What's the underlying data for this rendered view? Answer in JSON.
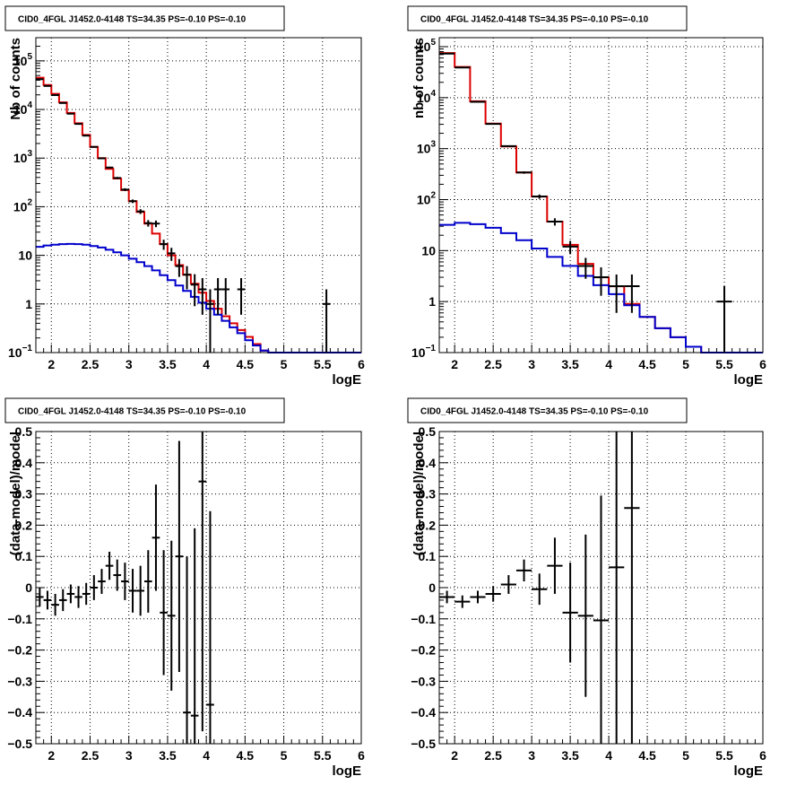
{
  "colors": {
    "data": "#000000",
    "model_total": "#dd0000",
    "model_source": "#0000cc"
  },
  "chart_data": [
    {
      "type": "histogram",
      "title": "CID0_4FGL J1452.0-4148 TS=34.35 PS=-0.10 PS=-0.10",
      "xlabel": "logE",
      "ylabel": "Nb of counts",
      "xlim": [
        1.8,
        6
      ],
      "ylim": [
        0.1,
        300000
      ],
      "log_y": true,
      "grid": true,
      "x_ticks": [
        "2",
        "2.5",
        "3",
        "3.5",
        "4",
        "4.5",
        "5",
        "5.5",
        "6"
      ],
      "y_ticks": [
        {
          "value": 0.1,
          "base": "10",
          "exp": "−1"
        },
        {
          "value": 1,
          "text": "1"
        },
        {
          "value": 10,
          "text": "10"
        },
        {
          "value": 100,
          "base": "10",
          "exp": "2"
        },
        {
          "value": 1000,
          "base": "10",
          "exp": "3"
        },
        {
          "value": 10000,
          "base": "10",
          "exp": "4"
        },
        {
          "value": 100000,
          "base": "10",
          "exp": "5"
        }
      ],
      "bin_edges": [
        1.8,
        1.9,
        2.0,
        2.1,
        2.2,
        2.3,
        2.4,
        2.5,
        2.6,
        2.7,
        2.8,
        2.9,
        3.0,
        3.1,
        3.2,
        3.3,
        3.4,
        3.5,
        3.6,
        3.7,
        3.8,
        3.9,
        4.0,
        4.1,
        4.2,
        4.3,
        4.4,
        4.5,
        4.6,
        4.7,
        4.8,
        4.9,
        5.0,
        5.1,
        5.2,
        5.3,
        5.4,
        5.5,
        5.6,
        5.7,
        5.8,
        5.9,
        6.0
      ],
      "series": [
        {
          "name": "model_total",
          "color": "#dd0000",
          "values": [
            45000,
            32000,
            21000,
            14000,
            8500,
            5200,
            3000,
            1700,
            1000,
            600,
            380,
            220,
            130,
            78,
            45,
            28,
            17,
            10,
            6.3,
            4.0,
            2.6,
            1.7,
            1.15,
            0.8,
            0.56,
            0.4,
            0.29,
            0.21,
            0.15,
            0.11,
            0.1,
            0.1,
            0.1,
            0.1,
            0.1,
            0.1,
            0.1,
            0.1,
            0.1,
            0.1,
            0.1,
            0.1
          ]
        },
        {
          "name": "model_source",
          "color": "#0000cc",
          "values": [
            15,
            16,
            16.5,
            17,
            17.2,
            17,
            16.5,
            15.5,
            14.5,
            13,
            11.5,
            10,
            8.5,
            7.2,
            6.0,
            4.9,
            3.9,
            3.1,
            2.4,
            1.85,
            1.4,
            1.06,
            0.8,
            0.6,
            0.45,
            0.33,
            0.25,
            0.18,
            0.14,
            0.11,
            0.1,
            0.1,
            0.1,
            0.1,
            0.1,
            0.1,
            0.1,
            0.1,
            0.1,
            0.1,
            0.1,
            0.1
          ]
        }
      ],
      "data_points": [
        {
          "x": 1.85,
          "y": 42000,
          "err": 205
        },
        {
          "x": 1.95,
          "y": 30500,
          "err": 175
        },
        {
          "x": 2.05,
          "y": 19800,
          "err": 140
        },
        {
          "x": 2.15,
          "y": 13600,
          "err": 117
        },
        {
          "x": 2.25,
          "y": 8200,
          "err": 91
        },
        {
          "x": 2.35,
          "y": 5050,
          "err": 71
        },
        {
          "x": 2.45,
          "y": 2900,
          "err": 54
        },
        {
          "x": 2.55,
          "y": 1700,
          "err": 41
        },
        {
          "x": 2.65,
          "y": 990,
          "err": 31
        },
        {
          "x": 2.75,
          "y": 640,
          "err": 25
        },
        {
          "x": 2.85,
          "y": 390,
          "err": 20
        },
        {
          "x": 2.95,
          "y": 225,
          "err": 15
        },
        {
          "x": 3.05,
          "y": 130,
          "err": 11
        },
        {
          "x": 3.15,
          "y": 80,
          "err": 9
        },
        {
          "x": 3.25,
          "y": 46,
          "err": 7
        },
        {
          "x": 3.35,
          "y": 45,
          "err": 7
        },
        {
          "x": 3.45,
          "y": 17,
          "err": 4
        },
        {
          "x": 3.55,
          "y": 11,
          "err": 3.3
        },
        {
          "x": 3.65,
          "y": 6,
          "err": 2.4
        },
        {
          "x": 3.75,
          "y": 4,
          "err": 2
        },
        {
          "x": 3.85,
          "y": 2.5,
          "err": 1.6
        },
        {
          "x": 3.95,
          "y": 2,
          "err": 1.4
        },
        {
          "x": 4.05,
          "y": 1,
          "err": 1
        },
        {
          "x": 4.15,
          "y": 2,
          "err": 1.4
        },
        {
          "x": 4.25,
          "y": 2,
          "err": 1.4
        },
        {
          "x": 4.45,
          "y": 2,
          "err": 1.4
        },
        {
          "x": 5.55,
          "y": 1,
          "err": 1
        }
      ]
    },
    {
      "type": "histogram",
      "title": "CID0_4FGL J1452.0-4148 TS=34.35 PS=-0.10 PS=-0.10",
      "xlabel": "logE",
      "ylabel": "nb of counts",
      "xlim": [
        1.8,
        6
      ],
      "ylim": [
        0.1,
        150000
      ],
      "log_y": true,
      "grid": true,
      "x_ticks": [
        "2",
        "2.5",
        "3",
        "3.5",
        "4",
        "4.5",
        "5",
        "5.5",
        "6"
      ],
      "y_ticks": [
        {
          "value": 0.1,
          "base": "10",
          "exp": "−1"
        },
        {
          "value": 1,
          "text": "1"
        },
        {
          "value": 10,
          "text": "10"
        },
        {
          "value": 100,
          "base": "10",
          "exp": "2"
        },
        {
          "value": 1000,
          "base": "10",
          "exp": "3"
        },
        {
          "value": 10000,
          "base": "10",
          "exp": "4"
        },
        {
          "value": 100000,
          "base": "10",
          "exp": "5"
        }
      ],
      "bin_edges": [
        1.8,
        2.0,
        2.2,
        2.4,
        2.6,
        2.8,
        3.0,
        3.2,
        3.4,
        3.6,
        3.8,
        4.0,
        4.2,
        4.4,
        4.6,
        4.8,
        5.0,
        5.2,
        5.4,
        5.6,
        5.8,
        6.0
      ],
      "series": [
        {
          "name": "model_total",
          "color": "#dd0000",
          "values": [
            75000,
            40000,
            8500,
            3100,
            1100,
            340,
            115,
            37,
            13,
            5.5,
            3,
            2,
            0.9,
            0.5,
            0.3,
            0.2,
            0.13,
            0.1,
            0.1,
            0.1,
            0.1
          ]
        },
        {
          "name": "model_source",
          "color": "#0000cc",
          "values": [
            32,
            35,
            33,
            28,
            22,
            16,
            11,
            7.5,
            5,
            3.2,
            2.1,
            1.4,
            0.85,
            0.5,
            0.3,
            0.2,
            0.13,
            0.1,
            0.1,
            0.1,
            0.1
          ]
        }
      ],
      "data_points": [
        {
          "x": 1.9,
          "y": 73000,
          "err": 270
        },
        {
          "x": 2.1,
          "y": 39000,
          "err": 197
        },
        {
          "x": 2.3,
          "y": 8300,
          "err": 91
        },
        {
          "x": 2.5,
          "y": 3050,
          "err": 55
        },
        {
          "x": 2.7,
          "y": 1120,
          "err": 33
        },
        {
          "x": 2.9,
          "y": 340,
          "err": 18
        },
        {
          "x": 3.1,
          "y": 115,
          "err": 11
        },
        {
          "x": 3.3,
          "y": 37,
          "err": 6
        },
        {
          "x": 3.5,
          "y": 12,
          "err": 3.5
        },
        {
          "x": 3.7,
          "y": 5,
          "err": 2.2
        },
        {
          "x": 3.9,
          "y": 3,
          "err": 1.7
        },
        {
          "x": 4.1,
          "y": 2,
          "err": 1.4
        },
        {
          "x": 4.3,
          "y": 2,
          "err": 1.4
        },
        {
          "x": 5.5,
          "y": 1,
          "err": 1
        }
      ]
    },
    {
      "type": "scatter",
      "title": "CID0_4FGL J1452.0-4148 TS=34.35 PS=-0.10 PS=-0.10",
      "xlabel": "logE",
      "ylabel": "(data-model)/model",
      "xlim": [
        1.8,
        6
      ],
      "ylim": [
        -0.5,
        0.5
      ],
      "grid": true,
      "x_ticks": [
        "2",
        "2.5",
        "3",
        "3.5",
        "4",
        "4.5",
        "5",
        "5.5",
        "6"
      ],
      "y_ticks": [
        "−0.5",
        "−0.4",
        "−0.3",
        "−0.2",
        "−0.1",
        "0",
        "0.1",
        "0.2",
        "0.3",
        "0.4",
        "0.5"
      ],
      "bin_half_width": 0.05,
      "data_points": [
        {
          "x": 1.85,
          "y": -0.03,
          "err": 0.03
        },
        {
          "x": 1.95,
          "y": -0.04,
          "err": 0.03
        },
        {
          "x": 2.05,
          "y": -0.055,
          "err": 0.035
        },
        {
          "x": 2.15,
          "y": -0.04,
          "err": 0.035
        },
        {
          "x": 2.25,
          "y": -0.02,
          "err": 0.03
        },
        {
          "x": 2.35,
          "y": -0.03,
          "err": 0.035
        },
        {
          "x": 2.45,
          "y": -0.02,
          "err": 0.035
        },
        {
          "x": 2.55,
          "y": 0.0,
          "err": 0.04
        },
        {
          "x": 2.65,
          "y": 0.02,
          "err": 0.04
        },
        {
          "x": 2.75,
          "y": 0.07,
          "err": 0.045
        },
        {
          "x": 2.85,
          "y": 0.04,
          "err": 0.05
        },
        {
          "x": 2.95,
          "y": 0.02,
          "err": 0.06
        },
        {
          "x": 3.05,
          "y": -0.01,
          "err": 0.07
        },
        {
          "x": 3.15,
          "y": -0.01,
          "err": 0.08
        },
        {
          "x": 3.25,
          "y": 0.02,
          "err": 0.1
        },
        {
          "x": 3.35,
          "y": 0.16,
          "err": 0.17
        },
        {
          "x": 3.45,
          "y": -0.08,
          "err": 0.2
        },
        {
          "x": 3.55,
          "y": -0.09,
          "err": 0.24
        },
        {
          "x": 3.65,
          "y": 0.1,
          "err": 0.37
        },
        {
          "x": 3.75,
          "y": -0.4,
          "err": 0.5
        },
        {
          "x": 3.85,
          "y": -0.41,
          "err": 0.6
        },
        {
          "x": 3.95,
          "y": 0.34,
          "err": 0.8
        },
        {
          "x": 4.05,
          "y": -0.375,
          "err": 0.62
        }
      ]
    },
    {
      "type": "scatter",
      "title": "CID0_4FGL J1452.0-4148 TS=34.35 PS=-0.10 PS=-0.10",
      "xlabel": "logE",
      "ylabel": "(data-model)/model",
      "xlim": [
        1.8,
        6
      ],
      "ylim": [
        -0.5,
        0.5
      ],
      "grid": true,
      "x_ticks": [
        "2",
        "2.5",
        "3",
        "3.5",
        "4",
        "4.5",
        "5",
        "5.5",
        "6"
      ],
      "y_ticks": [
        "−0.5",
        "−0.4",
        "−0.3",
        "−0.2",
        "−0.1",
        "0",
        "0.1",
        "0.2",
        "0.3",
        "0.4",
        "0.5"
      ],
      "bin_half_width": 0.1,
      "data_points": [
        {
          "x": 1.9,
          "y": -0.03,
          "err": 0.02
        },
        {
          "x": 2.1,
          "y": -0.045,
          "err": 0.02
        },
        {
          "x": 2.3,
          "y": -0.03,
          "err": 0.02
        },
        {
          "x": 2.5,
          "y": -0.02,
          "err": 0.025
        },
        {
          "x": 2.7,
          "y": 0.01,
          "err": 0.03
        },
        {
          "x": 2.9,
          "y": 0.055,
          "err": 0.035
        },
        {
          "x": 3.1,
          "y": -0.005,
          "err": 0.05
        },
        {
          "x": 3.3,
          "y": 0.07,
          "err": 0.09
        },
        {
          "x": 3.5,
          "y": -0.08,
          "err": 0.16
        },
        {
          "x": 3.7,
          "y": -0.09,
          "err": 0.26
        },
        {
          "x": 3.9,
          "y": -0.105,
          "err": 0.4
        },
        {
          "x": 4.1,
          "y": 0.065,
          "err": 0.7
        },
        {
          "x": 4.3,
          "y": 0.255,
          "err": 0.9
        }
      ]
    }
  ]
}
